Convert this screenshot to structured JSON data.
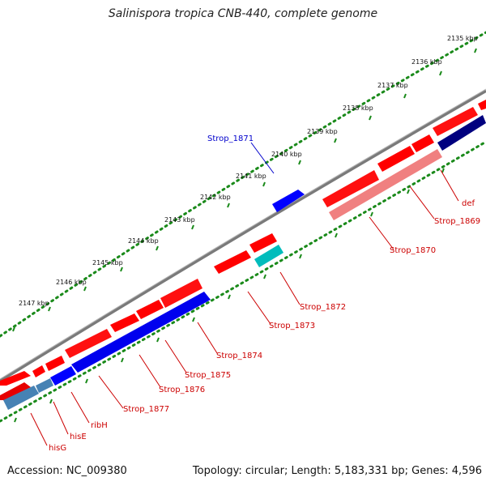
{
  "title": "Salinispora tropica CNB-440, complete genome",
  "footer": {
    "accession": "Accession: NC_009380",
    "summary": "Topology: circular; Length: 5,183,331 bp; Genes: 4,596"
  },
  "colors": {
    "backbone": "#808080",
    "ruler_dots": "#1a8a1a",
    "forward_gene": "#ff0000",
    "forward_gene_light": "#f08080",
    "reverse_gene": "#0000ff",
    "reverse_gene_dark": "#00007f",
    "reverse_gene_steel": "#4682b4",
    "reverse_gene_cyan": "#00bcbc",
    "label_forward": "#cc0000",
    "label_reverse": "#0000cc"
  },
  "ruler_labels": [
    "2135 kbp",
    "2136 kbp",
    "2137 kbp",
    "2138 kbp",
    "2139 kbp",
    "2140 kbp",
    "2141 kbp",
    "2142 kbp",
    "2143 kbp",
    "2144 kbp",
    "2145 kbp",
    "2146 kbp",
    "2147 kbp"
  ],
  "gene_labels": {
    "strop_1871": "Strop_1871",
    "def": "def",
    "strop_1869": "Strop_1869",
    "strop_1870": "Strop_1870",
    "strop_1872": "Strop_1872",
    "strop_1873": "Strop_1873",
    "strop_1874": "Strop_1874",
    "strop_1875": "Strop_1875",
    "strop_1876": "Strop_1876",
    "strop_1877": "Strop_1877",
    "ribH": "ribH",
    "hisE": "hisE",
    "hisG": "hisG"
  }
}
